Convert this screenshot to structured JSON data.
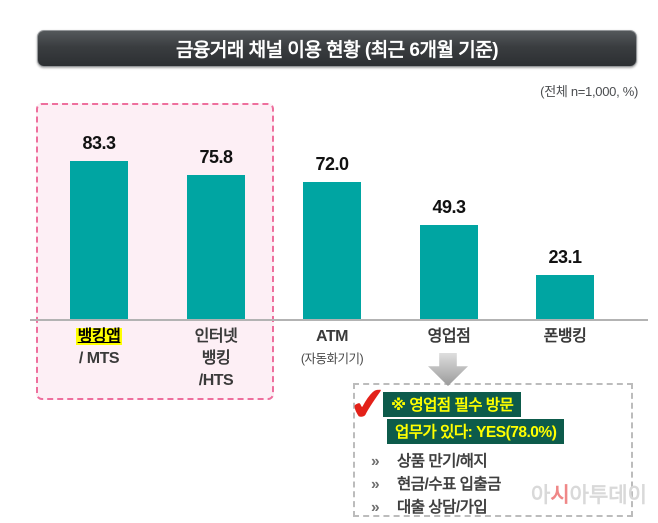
{
  "header": {
    "title": "금융거래 채널 이용 현황 (최근 6개월 기준)",
    "sample_note": "(전체 n=1,000, %)"
  },
  "chart_data": {
    "type": "bar",
    "title": "금융거래 채널 이용 현황 (최근 6개월 기준)",
    "sample_note": "(전체 n=1,000, %)",
    "unit": "%",
    "categories": [
      "뱅킹앱 / MTS",
      "인터넷 뱅킹 /HTS",
      "ATM (자동화기기)",
      "영업점",
      "폰뱅킹"
    ],
    "values": [
      83.3,
      75.8,
      72.0,
      49.3,
      23.1
    ],
    "value_labels": [
      "83.3",
      "75.8",
      "72.0",
      "49.3",
      "23.1"
    ],
    "category_label_lines": [
      [
        "뱅킹앱",
        "/ MTS"
      ],
      [
        "인터넷",
        "뱅킹",
        "/HTS"
      ],
      [
        "ATM",
        "(자동화기기)"
      ],
      [
        "영업점"
      ],
      [
        "폰뱅킹"
      ]
    ],
    "bar_color": "#00a5a2",
    "ylim": [
      0,
      100
    ],
    "layout": {
      "grid": false,
      "value_label_position": "above-bar",
      "pixels_per_unit": 1.9,
      "highlight_box": {
        "category_indexes": [
          0,
          1
        ],
        "border_color": "#ee6f9d",
        "fill_color": "#fdeff5"
      },
      "highlighted_category_label": {
        "text": "뱅킹앱",
        "highlight_color": "#ffff00",
        "underline": true
      }
    }
  },
  "callout": {
    "header_line1": "※ 영업점 필수 방문",
    "header_line2": "업무가 있다: YES(78.0%)",
    "bullet": "»",
    "items": [
      "상품 만기/해지",
      "현금/수표 입출금",
      "대출 상담/가입"
    ],
    "colors": {
      "header_bg": "#0d5b4b",
      "header_text": "#ffff00",
      "check_mark": "#e32119"
    }
  },
  "watermark": {
    "text": "아시아투데이",
    "pre": "아",
    "accent": "시",
    "post": "아투데이"
  }
}
